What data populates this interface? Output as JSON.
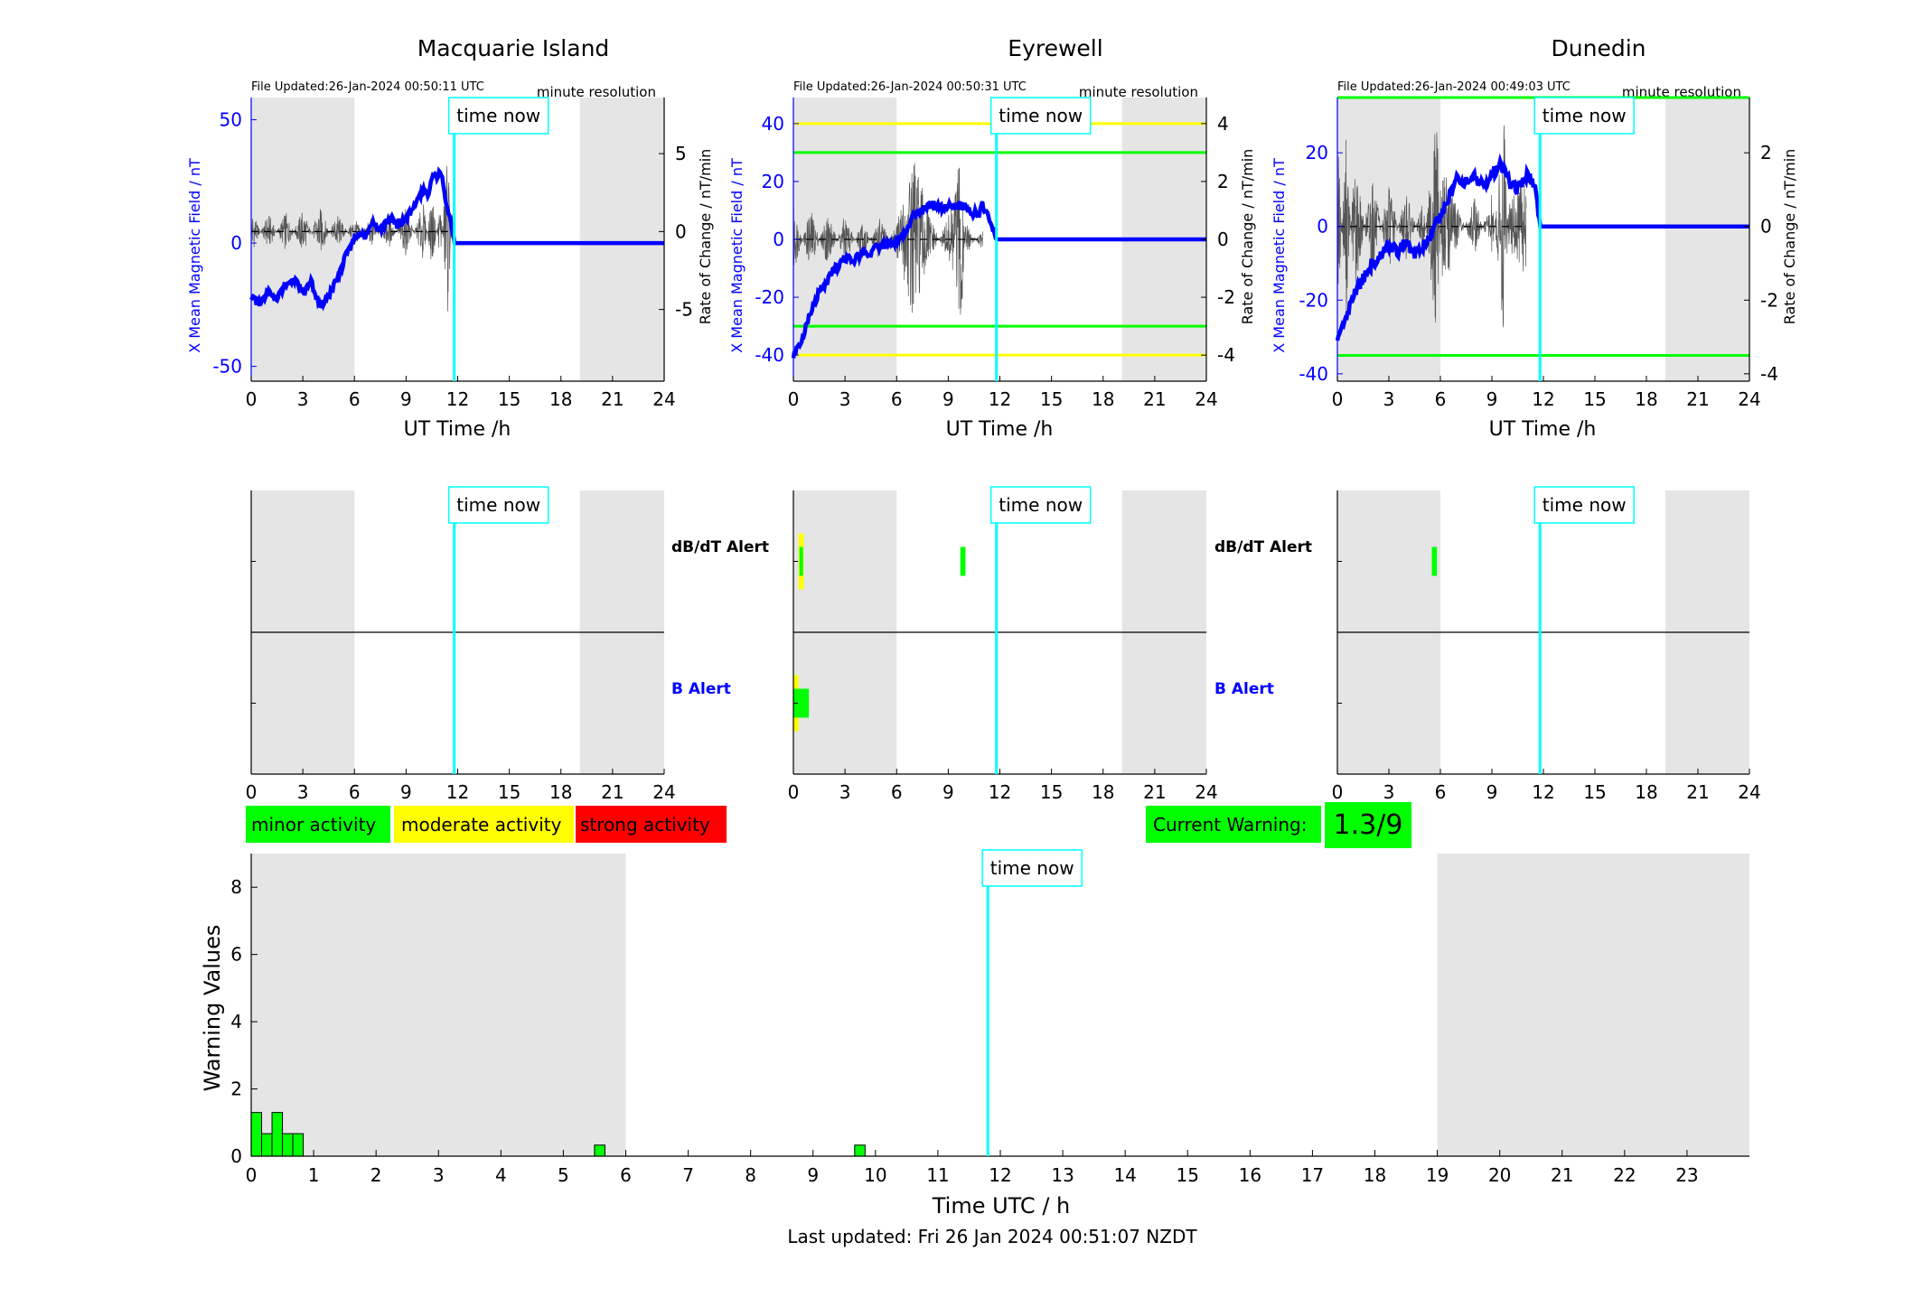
{
  "colors": {
    "shade": "#e5e5e5",
    "cyan": "#00ffff",
    "blue": "#0000ff",
    "green": "#00ff00",
    "yellow": "#ffff00",
    "red": "#ff0000",
    "trace": "#555555"
  },
  "labels": {
    "time_now": "time now",
    "file_prefix": "File Updated:",
    "resolution": "minute resolution",
    "ylabel_left": "X Mean Magnetic Field / nT",
    "ylabel_right": "Rate of Change / nT/min",
    "xlabel_top": "UT Time /h",
    "dbdt_alert": "dB/dT Alert",
    "b_alert": "B Alert",
    "current_warning_label": "Current Warning:",
    "current_warning_value": "1.3/9"
  },
  "legend": [
    {
      "label": "minor activity",
      "color": "#00ff00"
    },
    {
      "label": "moderate activity",
      "color": "#ffff00"
    },
    {
      "label": "strong activity",
      "color": "#ff0000"
    }
  ],
  "footer": "Last updated: Fri 26 Jan 2024 00:51:07 NZDT",
  "chart_data": [
    {
      "type": "line",
      "title": "Macquarie Island",
      "file_updated": "26-Jan-2024 00:50:11 UTC",
      "xlabel": "UT Time /h",
      "ylabel": "X Mean Magnetic Field / nT",
      "ylabel_right": "Rate of Change / nT/min",
      "xlim": [
        0,
        24
      ],
      "x_ticks": [
        0,
        3,
        6,
        9,
        12,
        15,
        18,
        21,
        24
      ],
      "ylim": [
        -56,
        59
      ],
      "y_ticks": [
        -50,
        0,
        50
      ],
      "ylim_right": [
        -9.6,
        8.6
      ],
      "y_ticks_right": [
        -5,
        0,
        5
      ],
      "night_shading_h": [
        [
          0,
          6
        ],
        [
          19.1,
          24
        ]
      ],
      "time_now_h": 11.8,
      "thresholds": [],
      "series": [
        {
          "name": "X Mean Magnetic Field",
          "axis": "left",
          "x": [
            0,
            0.5,
            1,
            1.5,
            2,
            2.5,
            3,
            3.5,
            3.8,
            4,
            4.3,
            4.6,
            5,
            5.5,
            5.9,
            6.3,
            6.6,
            7,
            7.5,
            7.8,
            8,
            8.5,
            9,
            9.3,
            9.6,
            10,
            10.3,
            10.6,
            10.8,
            11,
            11.2,
            11.4,
            11.6,
            11.8,
            24
          ],
          "values": [
            -22,
            -25,
            -20,
            -22,
            -17,
            -15,
            -20,
            -16,
            -22,
            -25,
            -24,
            -20,
            -15,
            -5,
            0,
            5,
            3,
            8,
            5,
            8,
            10,
            8,
            10,
            13,
            16,
            22,
            20,
            29,
            27,
            30,
            22,
            14,
            9,
            0,
            0
          ]
        },
        {
          "name": "Rate of Change",
          "axis": "right",
          "x": [
            0,
            1,
            2,
            3,
            4,
            5,
            6,
            7,
            8,
            9,
            10,
            10.5,
            11,
            11.4,
            11.7
          ],
          "values": [
            1.5,
            -1.2,
            1.3,
            -1.5,
            1.6,
            -1.2,
            0.9,
            -1.0,
            1.1,
            -1.6,
            1.9,
            -2.4,
            2.0,
            -5.8,
            1.2
          ]
        }
      ]
    },
    {
      "type": "line",
      "title": "Eyrewell",
      "file_updated": "26-Jan-2024 00:50:31 UTC",
      "xlabel": "UT Time /h",
      "ylabel": "X Mean Magnetic Field / nT",
      "ylabel_right": "Rate of Change / nT/min",
      "xlim": [
        0,
        24
      ],
      "x_ticks": [
        0,
        3,
        6,
        9,
        12,
        15,
        18,
        21,
        24
      ],
      "ylim": [
        -49,
        49
      ],
      "y_ticks": [
        -40,
        -20,
        0,
        20,
        40
      ],
      "ylim_right": [
        -4.9,
        4.9
      ],
      "y_ticks_right": [
        -4,
        -2,
        0,
        2,
        4
      ],
      "night_shading_h": [
        [
          0,
          6
        ],
        [
          19.1,
          24
        ]
      ],
      "time_now_h": 11.8,
      "thresholds": [
        {
          "value": 40,
          "color": "#ffff00"
        },
        {
          "value": -40,
          "color": "#ffff00"
        },
        {
          "value": 30,
          "color": "#00ff00"
        },
        {
          "value": -30,
          "color": "#00ff00"
        }
      ],
      "series": [
        {
          "name": "X Mean Magnetic Field",
          "axis": "left",
          "x": [
            0,
            0.5,
            1,
            1.5,
            2,
            2.5,
            3,
            3.5,
            4,
            4.5,
            5,
            5.5,
            6,
            6.5,
            7,
            7.5,
            8,
            8.5,
            9,
            9.5,
            10,
            10.5,
            10.8,
            11,
            11.8,
            24
          ],
          "values": [
            -40,
            -35,
            -25,
            -18,
            -14,
            -10,
            -6,
            -8,
            -4,
            -5,
            -2,
            -2,
            -1,
            2,
            9,
            10,
            12,
            11,
            11,
            12,
            11,
            9,
            8,
            12,
            0,
            0
          ]
        },
        {
          "name": "Rate of Change",
          "axis": "right",
          "x": [
            0,
            1,
            2,
            3,
            4,
            5,
            6,
            7,
            8,
            9,
            9.8,
            10,
            11
          ],
          "values": [
            1.2,
            -1.1,
            1.0,
            -0.9,
            0.7,
            -0.8,
            0.6,
            2.8,
            0.7,
            -0.8,
            -3.1,
            0.6,
            -0.4
          ]
        }
      ]
    },
    {
      "type": "line",
      "title": "Dunedin",
      "file_updated": "26-Jan-2024 00:49:03 UTC",
      "xlabel": "UT Time /h",
      "ylabel": "X Mean Magnetic Field / nT",
      "ylabel_right": "Rate of Change / nT/min",
      "xlim": [
        0,
        24
      ],
      "x_ticks": [
        0,
        3,
        6,
        9,
        12,
        15,
        18,
        21,
        24
      ],
      "ylim": [
        -42,
        35
      ],
      "y_ticks": [
        -40,
        -20,
        0,
        20
      ],
      "ylim_right": [
        -4.2,
        3.5
      ],
      "y_ticks_right": [
        -4,
        -2,
        0,
        2
      ],
      "night_shading_h": [
        [
          0,
          6
        ],
        [
          19.1,
          24
        ]
      ],
      "time_now_h": 11.8,
      "thresholds": [
        {
          "value": 35,
          "color": "#00ff00"
        },
        {
          "value": -35,
          "color": "#00ff00"
        }
      ],
      "series": [
        {
          "name": "X Mean Magnetic Field",
          "axis": "left",
          "x": [
            0,
            0.3,
            0.6,
            1,
            1.5,
            2,
            2.5,
            3,
            3.5,
            4,
            4.5,
            5,
            5.5,
            6,
            6.5,
            7,
            7.5,
            8,
            8.5,
            9,
            9.5,
            10,
            10.5,
            11,
            11.5,
            11.8,
            24
          ],
          "values": [
            -32,
            -28,
            -24,
            -18,
            -14,
            -10,
            -8,
            -5,
            -7,
            -4,
            -8,
            -5,
            -2,
            3,
            8,
            13,
            12,
            14,
            11,
            14,
            17,
            12,
            10,
            14,
            12,
            0,
            0
          ]
        },
        {
          "name": "Rate of Change",
          "axis": "right",
          "x": [
            0,
            0.5,
            1,
            2,
            3,
            4,
            5,
            5.8,
            6,
            7,
            8,
            9,
            9.7,
            10,
            11
          ],
          "values": [
            2.8,
            -2.5,
            2.0,
            -1.5,
            1.2,
            -1.0,
            0.8,
            -3.4,
            1.9,
            0.6,
            -0.8,
            0.9,
            -3.2,
            0.7,
            1.4
          ]
        }
      ]
    },
    {
      "type": "bar",
      "title": "Macquarie Island",
      "alert_rows": [
        "dB/dT Alert",
        "B Alert"
      ],
      "xlim": [
        0,
        24
      ],
      "x_ticks": [
        0,
        3,
        6,
        9,
        12,
        15,
        18,
        21,
        24
      ],
      "night_shading_h": [
        [
          0,
          6
        ],
        [
          19.1,
          24
        ]
      ],
      "time_now_h": 11.8,
      "alerts": []
    },
    {
      "type": "bar",
      "title": "Eyrewell",
      "alert_rows": [
        "dB/dT Alert",
        "B Alert"
      ],
      "xlim": [
        0,
        24
      ],
      "x_ticks": [
        0,
        3,
        6,
        9,
        12,
        15,
        18,
        21,
        24
      ],
      "night_shading_h": [
        [
          0,
          6
        ],
        [
          19.1,
          24
        ]
      ],
      "time_now_h": 11.8,
      "alerts": [
        {
          "row": "dB/dT Alert",
          "start_h": 0.3,
          "end_h": 0.6,
          "level": "moderate"
        },
        {
          "row": "dB/dT Alert",
          "start_h": 0.35,
          "end_h": 0.55,
          "level": "minor"
        },
        {
          "row": "dB/dT Alert",
          "start_h": 9.7,
          "end_h": 10.0,
          "level": "minor"
        },
        {
          "row": "B Alert",
          "start_h": 0.0,
          "end_h": 0.3,
          "level": "moderate"
        },
        {
          "row": "B Alert",
          "start_h": 0.0,
          "end_h": 0.9,
          "level": "minor"
        }
      ]
    },
    {
      "type": "bar",
      "title": "Dunedin",
      "alert_rows": [
        "dB/dT Alert",
        "B Alert"
      ],
      "xlim": [
        0,
        24
      ],
      "x_ticks": [
        0,
        3,
        6,
        9,
        12,
        15,
        18,
        21,
        24
      ],
      "night_shading_h": [
        [
          0,
          6
        ],
        [
          19.1,
          24
        ]
      ],
      "time_now_h": 11.8,
      "alerts": [
        {
          "row": "dB/dT Alert",
          "start_h": 5.5,
          "end_h": 5.8,
          "level": "minor"
        }
      ]
    },
    {
      "type": "bar",
      "xlabel": "Time UTC / h",
      "ylabel": "Warning Values",
      "xlim": [
        0,
        24
      ],
      "x_ticks": [
        0,
        1,
        2,
        3,
        4,
        5,
        6,
        7,
        8,
        9,
        10,
        11,
        12,
        13,
        14,
        15,
        16,
        17,
        18,
        19,
        20,
        21,
        22,
        23
      ],
      "ylim": [
        0,
        9
      ],
      "y_ticks": [
        0,
        2,
        4,
        6,
        8
      ],
      "night_shading_h": [
        [
          0,
          6
        ],
        [
          19,
          24
        ]
      ],
      "time_now_h": 11.8,
      "bar_width_h": 0.167,
      "x": [
        0.083,
        0.25,
        0.417,
        0.583,
        0.75,
        5.583,
        9.75
      ],
      "values": [
        1.3,
        0.67,
        1.3,
        0.67,
        0.67,
        0.33,
        0.33
      ]
    }
  ]
}
